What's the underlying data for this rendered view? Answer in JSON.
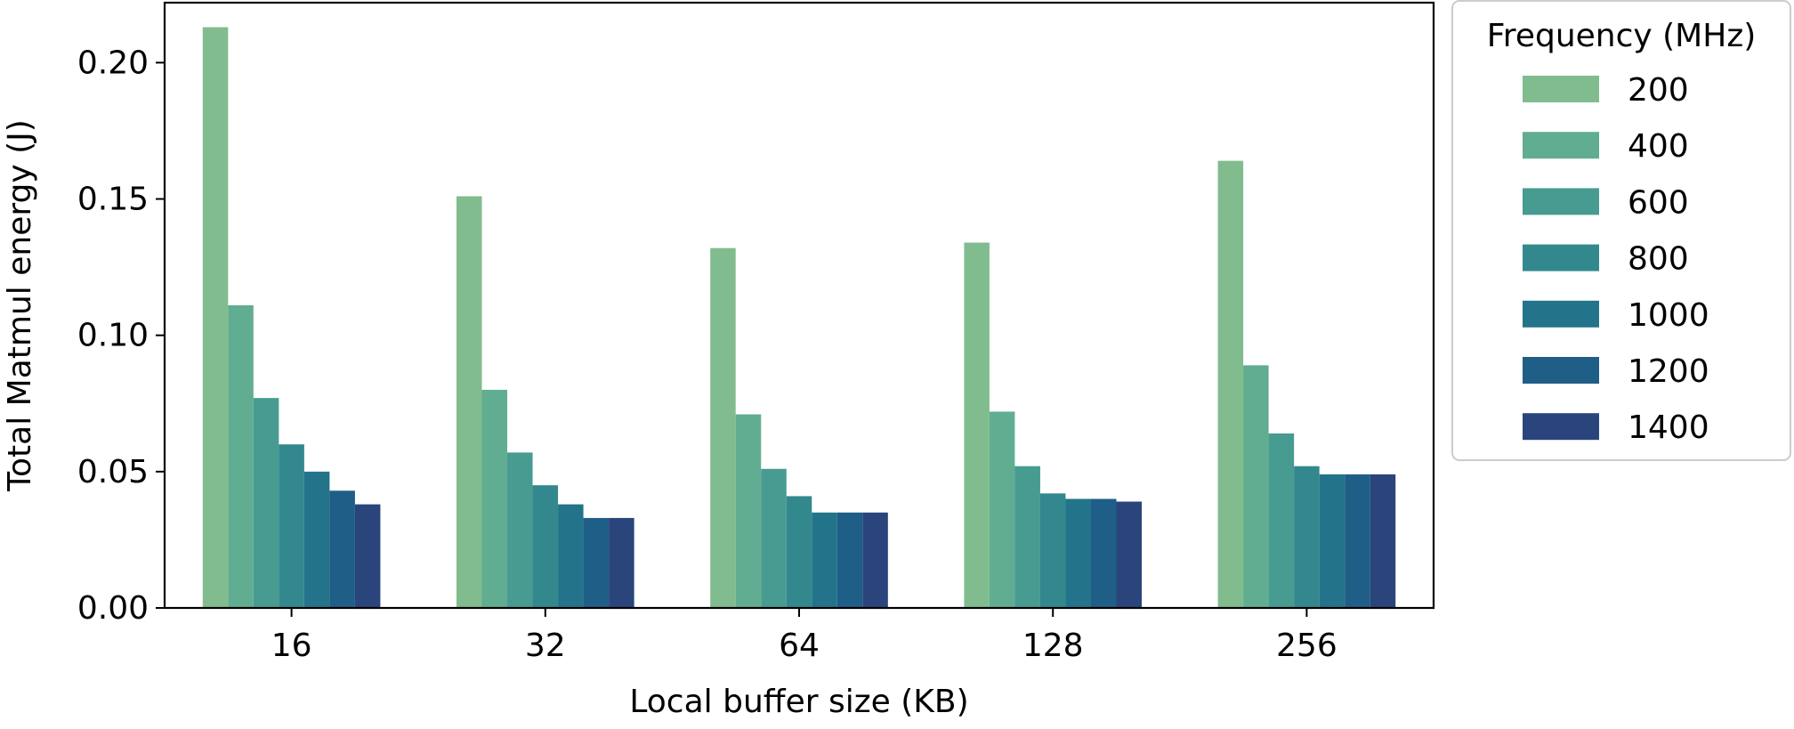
{
  "chart_data": {
    "type": "bar",
    "title": "",
    "xlabel": "Local buffer size (KB)",
    "ylabel": "Total Matmul energy (J)",
    "ylim": [
      0,
      0.222
    ],
    "yticks": [
      "0.00",
      "0.05",
      "0.10",
      "0.15",
      "0.20"
    ],
    "ytick_values": [
      0.0,
      0.05,
      0.1,
      0.15,
      0.2
    ],
    "categories": [
      "16",
      "32",
      "64",
      "128",
      "256"
    ],
    "legend": {
      "title": "Frequency (MHz)",
      "position": "outside-right-top"
    },
    "series": [
      {
        "name": "200",
        "color": "#81bc8f",
        "values": [
          0.213,
          0.151,
          0.132,
          0.134,
          0.164
        ]
      },
      {
        "name": "400",
        "color": "#61ad91",
        "values": [
          0.111,
          0.08,
          0.071,
          0.072,
          0.089
        ]
      },
      {
        "name": "600",
        "color": "#479b91",
        "values": [
          0.077,
          0.057,
          0.051,
          0.052,
          0.064
        ]
      },
      {
        "name": "800",
        "color": "#33888d",
        "values": [
          0.06,
          0.045,
          0.041,
          0.042,
          0.052
        ]
      },
      {
        "name": "1000",
        "color": "#23748a",
        "values": [
          0.05,
          0.038,
          0.035,
          0.04,
          0.049
        ]
      },
      {
        "name": "1200",
        "color": "#1f5e87",
        "values": [
          0.043,
          0.033,
          0.035,
          0.04,
          0.049
        ]
      },
      {
        "name": "1400",
        "color": "#29457c",
        "values": [
          0.038,
          0.033,
          0.035,
          0.039,
          0.049
        ]
      }
    ]
  }
}
